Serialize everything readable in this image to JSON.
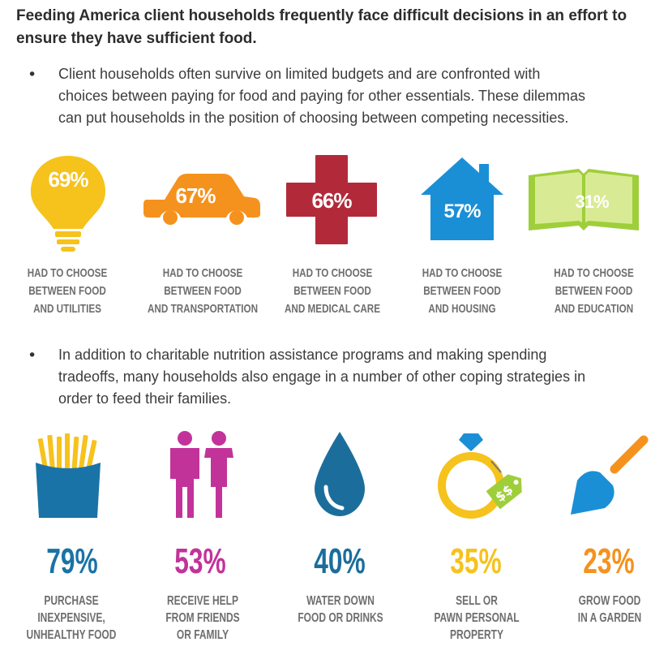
{
  "heading": {
    "line1": "Feeding America client households frequently face difficult decisions in an effort to",
    "line2": "ensure they have sufficient food."
  },
  "bullet1": {
    "marker": "•",
    "lines": [
      "Client households often survive on limited budgets and are confronted with",
      "choices between paying for food and paying for other essentials. These dilemmas",
      "can put households in the position of choosing between competing necessities."
    ]
  },
  "choices": [
    {
      "percent": "69%",
      "icon": "lightbulb-icon",
      "color": "#f6c21c",
      "caption": [
        "HAD TO CHOOSE",
        "BETWEEN FOOD",
        "AND UTILITIES"
      ]
    },
    {
      "percent": "67%",
      "icon": "car-icon",
      "color": "#f5921e",
      "caption": [
        "HAD TO CHOOSE",
        "BETWEEN FOOD",
        "AND TRANSPORTATION"
      ]
    },
    {
      "percent": "66%",
      "icon": "medical-cross-icon",
      "color": "#b22a3a",
      "caption": [
        "HAD TO CHOOSE",
        "BETWEEN FOOD",
        "AND MEDICAL CARE"
      ]
    },
    {
      "percent": "57%",
      "icon": "house-icon",
      "color": "#1b8fd6",
      "caption": [
        "HAD TO CHOOSE",
        "BETWEEN FOOD",
        "AND HOUSING"
      ]
    },
    {
      "percent": "31%",
      "icon": "book-icon",
      "color": "#9fce3b",
      "caption": [
        "HAD TO CHOOSE",
        "BETWEEN FOOD",
        "AND EDUCATION"
      ]
    }
  ],
  "bullet2": {
    "marker": "•",
    "lines": [
      "In addition to charitable nutrition assistance programs and making spending",
      "tradeoffs, many households also engage in a number of other coping strategies in",
      "order to feed their families."
    ]
  },
  "strategies": [
    {
      "percent": "79%",
      "icon": "french-fries-icon",
      "color": "#1a73a6",
      "caption": [
        "PURCHASE",
        "INEXPENSIVE,",
        "UNHEALTHY FOOD"
      ]
    },
    {
      "percent": "53%",
      "icon": "people-icon",
      "color": "#c2339a",
      "caption": [
        "RECEIVE HELP",
        "FROM FRIENDS",
        "OR FAMILY"
      ]
    },
    {
      "percent": "40%",
      "icon": "water-drop-icon",
      "color": "#1b6e9c",
      "caption": [
        "WATER DOWN",
        "FOOD OR DRINKS"
      ]
    },
    {
      "percent": "35%",
      "icon": "ring-tag-icon",
      "color": "#f6c21c",
      "caption": [
        "SELL OR",
        "PAWN PERSONAL",
        "PROPERTY"
      ]
    },
    {
      "percent": "23%",
      "icon": "trowel-icon",
      "color": "#f5921e",
      "caption": [
        "GROW FOOD",
        "IN A GARDEN"
      ]
    }
  ]
}
